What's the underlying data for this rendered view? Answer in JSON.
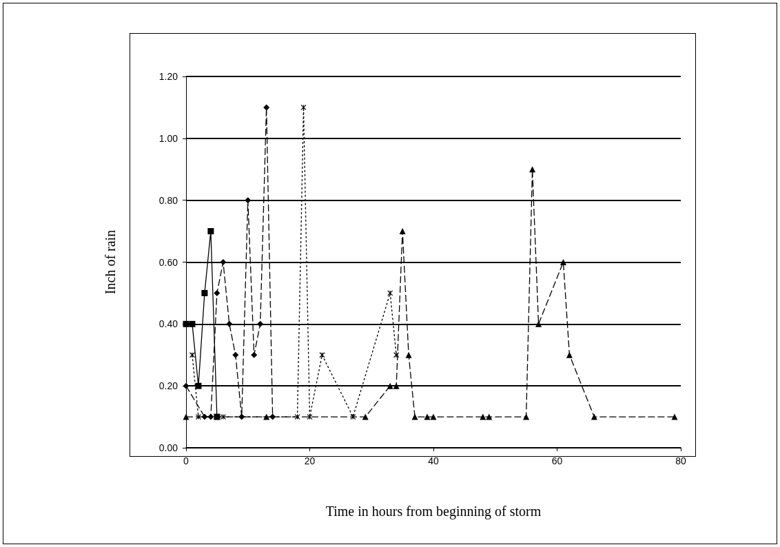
{
  "chart_data": {
    "type": "line",
    "xlabel": "Time in hours from beginning of storm",
    "ylabel": "Inch of rain",
    "xlim": [
      0,
      80
    ],
    "xticks": [
      0,
      20,
      40,
      60,
      80
    ],
    "ylim": [
      0,
      1.2
    ],
    "yticks": [
      {
        "value": 0,
        "label": "0.00"
      },
      {
        "value": 0.2,
        "label": "0.20"
      },
      {
        "value": 0.4,
        "label": "0.40"
      },
      {
        "value": 0.6,
        "label": "0.60"
      },
      {
        "value": 0.8,
        "label": "0.80"
      },
      {
        "value": 1,
        "label": "1.00"
      },
      {
        "value": 1.2,
        "label": "1.20"
      }
    ],
    "grid": "y",
    "series": [
      {
        "color": "#000000",
        "marker": "square",
        "line_style": "solid",
        "x": [
          0,
          1,
          2,
          3,
          4,
          5
        ],
        "values": [
          0.4,
          0.4,
          0.2,
          0.5,
          0.7,
          0.1
        ]
      },
      {
        "color": "#000000",
        "marker": "diamond",
        "line_style": "dashed",
        "x": [
          0,
          3,
          4,
          5,
          6,
          7,
          8,
          9,
          10,
          11,
          12,
          13,
          14
        ],
        "values": [
          0.2,
          0.1,
          0.1,
          0.5,
          0.6,
          0.4,
          0.3,
          0.1,
          0.8,
          0.3,
          0.4,
          1.1,
          0.1
        ]
      },
      {
        "color": "#000000",
        "marker": "cross",
        "line_style": "dotted",
        "x": [
          1,
          2,
          6,
          18,
          19,
          20,
          22,
          27,
          33,
          34
        ],
        "values": [
          0.3,
          0.1,
          0.1,
          0.1,
          1.1,
          0.1,
          0.3,
          0.1,
          0.5,
          0.3
        ]
      },
      {
        "color": "#000000",
        "marker": "triangle",
        "line_style": "dashed",
        "x": [
          0,
          13,
          29,
          33,
          34,
          35,
          36,
          37,
          39,
          40,
          48,
          49,
          55,
          56,
          57,
          61,
          62,
          66,
          79
        ],
        "values": [
          0.1,
          0.1,
          0.1,
          0.2,
          0.2,
          0.7,
          0.3,
          0.1,
          0.1,
          0.1,
          0.1,
          0.1,
          0.1,
          0.9,
          0.4,
          0.6,
          0.3,
          0.1,
          0.1
        ]
      }
    ]
  }
}
